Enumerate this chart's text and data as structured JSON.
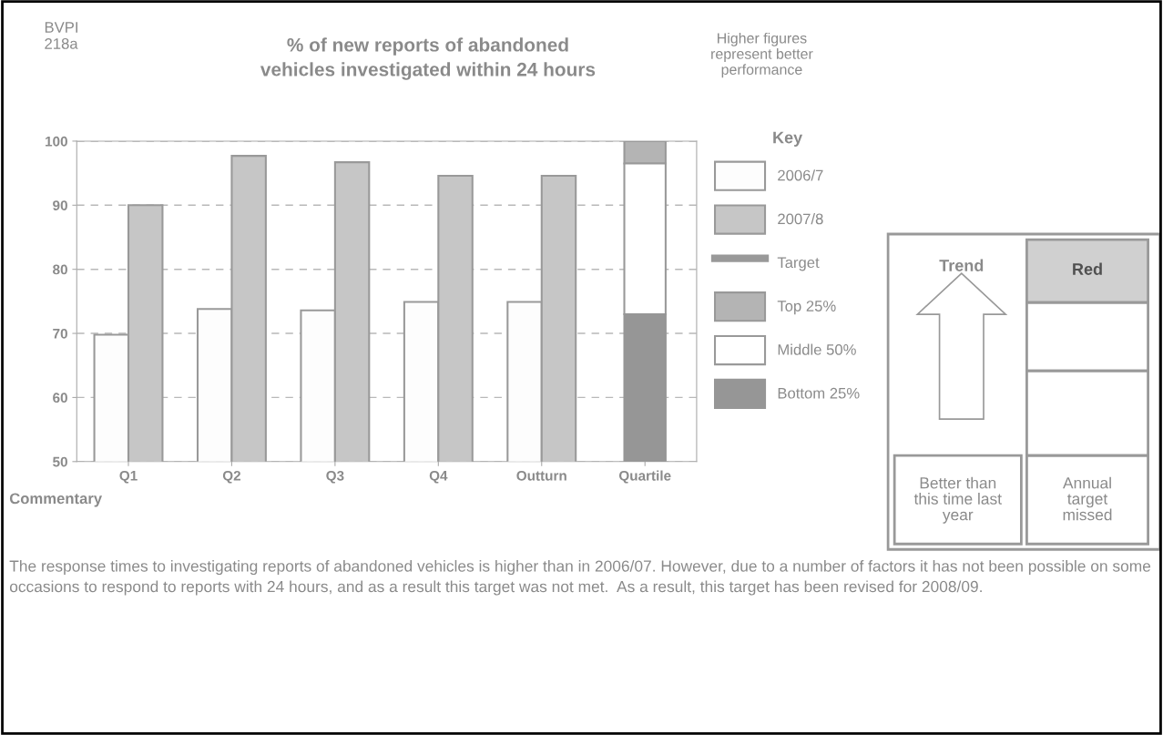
{
  "chart_data": [
    {
      "type": "bar",
      "title": "% of new reports of abandoned vehicles investigated within 24 hours",
      "categories": [
        "Q1",
        "Q2",
        "Q3",
        "Q4",
        "Outturn",
        "Quartile"
      ],
      "series": [
        {
          "name": "2006/7",
          "color": "#fdfdfd",
          "values": [
            69.8,
            73.8,
            73.6,
            74.9,
            74.9,
            null
          ]
        },
        {
          "name": "2007/8",
          "color": "#c6c6c6",
          "values": [
            90,
            97.7,
            96.7,
            94.6,
            94.6,
            null
          ]
        },
        {
          "name": "Target",
          "type": "line",
          "color": "#999999",
          "values": [
            null,
            null,
            null,
            null,
            null,
            null
          ]
        },
        {
          "name": "Top 25%",
          "color": "#b4b4b4",
          "values": [
            null,
            null,
            null,
            null,
            null,
            3.5
          ],
          "base": [
            null,
            null,
            null,
            null,
            null,
            96.5
          ]
        },
        {
          "name": "Middle 50%",
          "color": "#ffffff",
          "values": [
            null,
            null,
            null,
            null,
            null,
            23.5
          ],
          "base": [
            null,
            null,
            null,
            null,
            null,
            73
          ]
        },
        {
          "name": "Bottom 25%",
          "color": "#969696",
          "values": [
            null,
            null,
            null,
            null,
            null,
            23
          ],
          "base": [
            null,
            null,
            null,
            null,
            null,
            50
          ]
        }
      ],
      "ylim": [
        50,
        100
      ],
      "yticks": [
        50,
        60,
        70,
        80,
        90,
        100
      ],
      "grid": "y",
      "legend": "right",
      "legend_title": "Key",
      "annotations": [
        "BVPI 218a",
        "Higher figures represent better performance",
        "Commentary",
        "The response times to investigating reports of abandoned vehicles is higher than in 2006/07. However, due to a number of factors it has not been possible on some occasions to respond to reports with 24 hours, and as a result this target was not met.  As a result, this target has been revised for 2008/09."
      ]
    },
    {
      "type": "other",
      "annotations": [
        "Trend",
        "Red",
        "Better than this time last year",
        "Annual target missed"
      ]
    }
  ]
}
